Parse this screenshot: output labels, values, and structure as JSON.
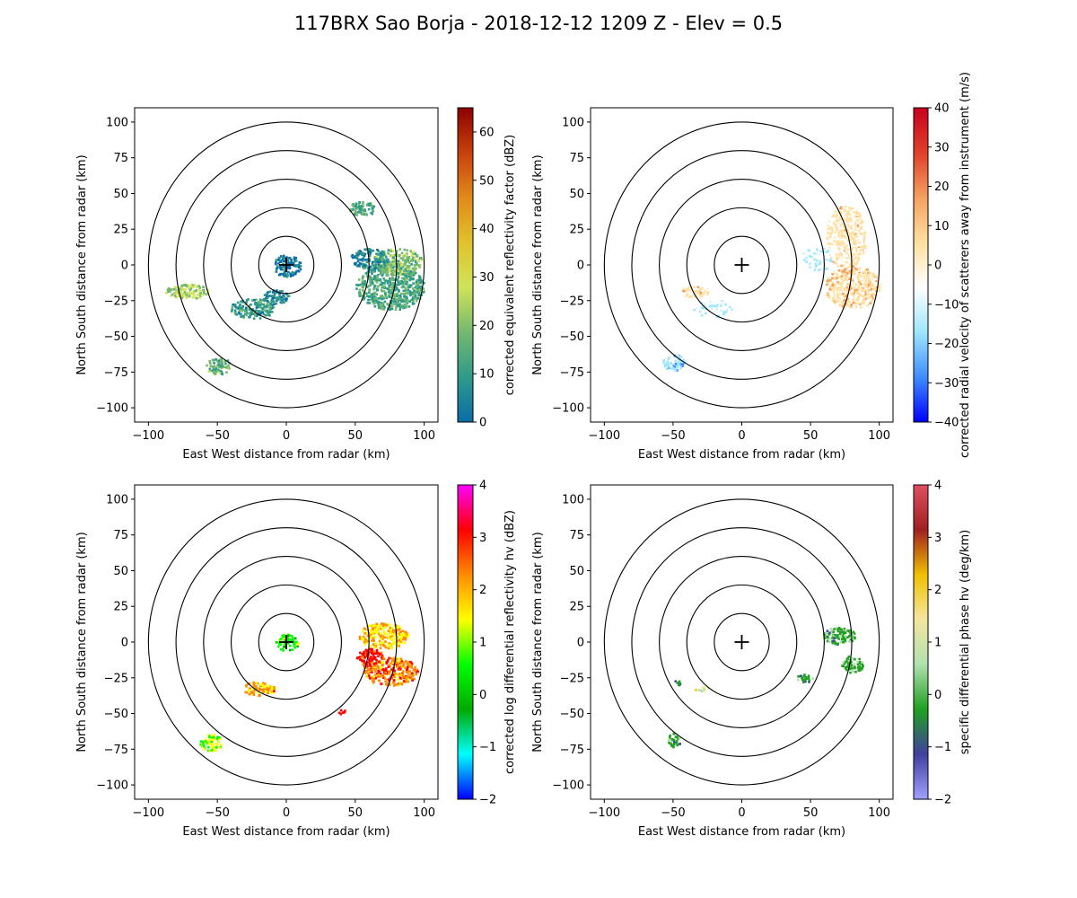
{
  "figure": {
    "title": "117BRX Sao Borja - 2018-12-12 1209 Z -  Elev = 0.5"
  },
  "chart_data": [
    {
      "type": "heatmap",
      "panel": "top-left",
      "field": "reflectivity",
      "xlabel": "East West distance from radar (km)",
      "ylabel": "North South distance from radar (km)",
      "xlim": [
        -110,
        110
      ],
      "ylim": [
        -110,
        110
      ],
      "xticks": [
        -100,
        -50,
        0,
        50,
        100
      ],
      "yticks": [
        -100,
        -75,
        -50,
        -25,
        0,
        25,
        50,
        75,
        100
      ],
      "range_rings_km": [
        20,
        40,
        60,
        80,
        100
      ],
      "colorbar": {
        "label": "corrected equivalent reflectivity factor (dBZ)",
        "min": 0,
        "max": 65,
        "ticks": [
          0,
          10,
          20,
          30,
          40,
          50,
          60
        ],
        "stops": [
          "#0c6ca8",
          "#2f9a8a",
          "#74b86f",
          "#d0e35a",
          "#e0c22c",
          "#e08a1a",
          "#c8400c",
          "#8c0000"
        ]
      },
      "echoes": [
        {
          "x": 75,
          "y": -15,
          "rx": 25,
          "ry": 16,
          "value": 18
        },
        {
          "x": 80,
          "y": 3,
          "rx": 18,
          "ry": 9,
          "value": 24
        },
        {
          "x": 60,
          "y": 5,
          "rx": 14,
          "ry": 7,
          "value": 12
        },
        {
          "x": 55,
          "y": 40,
          "rx": 10,
          "ry": 5,
          "value": 18
        },
        {
          "x": -25,
          "y": -30,
          "rx": 16,
          "ry": 7,
          "value": 14
        },
        {
          "x": -72,
          "y": -18,
          "rx": 16,
          "ry": 5,
          "value": 28
        },
        {
          "x": -50,
          "y": -70,
          "rx": 9,
          "ry": 6,
          "value": 22
        },
        {
          "x": 0,
          "y": 0,
          "rx": 10,
          "ry": 8,
          "value": 8
        },
        {
          "x": -8,
          "y": -22,
          "rx": 10,
          "ry": 5,
          "value": 10
        }
      ]
    },
    {
      "type": "heatmap",
      "panel": "top-right",
      "field": "velocity",
      "xlabel": "East West distance from radar (km)",
      "ylabel": "North South distance from radar (km)",
      "xlim": [
        -110,
        110
      ],
      "ylim": [
        -110,
        110
      ],
      "xticks": [
        -100,
        -50,
        0,
        50,
        100
      ],
      "yticks": [
        -100,
        -75,
        -50,
        -25,
        0,
        25,
        50,
        75,
        100
      ],
      "range_rings_km": [
        20,
        40,
        60,
        80,
        100
      ],
      "colorbar": {
        "label": "corrected radial velocity of scatterers away from instrument (m/s)",
        "min": -40,
        "max": 40,
        "ticks": [
          -40,
          -30,
          -20,
          -10,
          0,
          10,
          20,
          30,
          40
        ],
        "stops": [
          "#0000ff",
          "#3f8cff",
          "#9fe6ff",
          "#ffffff",
          "#ffe0a0",
          "#f5a060",
          "#e0402a",
          "#c8001e"
        ]
      },
      "echoes": [
        {
          "x": 80,
          "y": -15,
          "rx": 20,
          "ry": 15,
          "value": 12
        },
        {
          "x": 75,
          "y": 20,
          "rx": 15,
          "ry": 22,
          "value": 9
        },
        {
          "x": 55,
          "y": 5,
          "rx": 12,
          "ry": 8,
          "value": -5
        },
        {
          "x": -20,
          "y": -30,
          "rx": 16,
          "ry": 6,
          "value": -4
        },
        {
          "x": -50,
          "y": -68,
          "rx": 8,
          "ry": 6,
          "value": -12
        },
        {
          "x": -35,
          "y": -18,
          "rx": 10,
          "ry": 4,
          "value": 10
        }
      ]
    },
    {
      "type": "heatmap",
      "panel": "bottom-left",
      "field": "differential_reflectivity",
      "xlabel": "East West distance from radar (km)",
      "ylabel": "North South distance from radar (km)",
      "xlim": [
        -110,
        110
      ],
      "ylim": [
        -110,
        110
      ],
      "xticks": [
        -100,
        -50,
        0,
        50,
        100
      ],
      "yticks": [
        -100,
        -75,
        -50,
        -25,
        0,
        25,
        50,
        75,
        100
      ],
      "range_rings_km": [
        20,
        40,
        60,
        80,
        100
      ],
      "colorbar": {
        "label": "corrected log differential reflectivity hv (dBZ)",
        "min": -2,
        "max": 4,
        "ticks": [
          -2,
          -1,
          0,
          1,
          2,
          3,
          4
        ],
        "stops": [
          "#0000ff",
          "#00ffff",
          "#00aa00",
          "#00ff00",
          "#ffff00",
          "#ff8c00",
          "#ff0000",
          "#ff00ff"
        ]
      },
      "echoes": [
        {
          "x": 70,
          "y": 5,
          "rx": 18,
          "ry": 9,
          "value": 2.2
        },
        {
          "x": 75,
          "y": -20,
          "rx": 20,
          "ry": 10,
          "value": 2.8
        },
        {
          "x": 60,
          "y": -10,
          "rx": 10,
          "ry": 6,
          "value": 3.6
        },
        {
          "x": -20,
          "y": -32,
          "rx": 12,
          "ry": 5,
          "value": 2.5
        },
        {
          "x": -55,
          "y": -70,
          "rx": 8,
          "ry": 6,
          "value": 1.5
        },
        {
          "x": 0,
          "y": 0,
          "rx": 8,
          "ry": 6,
          "value": 1.0
        },
        {
          "x": 40,
          "y": -48,
          "rx": 3,
          "ry": 2,
          "value": 3.8
        }
      ]
    },
    {
      "type": "heatmap",
      "panel": "bottom-right",
      "field": "specific_differential_phase",
      "xlabel": "East West distance from radar (km)",
      "ylabel": "North South distance from radar (km)",
      "xlim": [
        -110,
        110
      ],
      "ylim": [
        -110,
        110
      ],
      "xticks": [
        -100,
        -50,
        0,
        50,
        100
      ],
      "yticks": [
        -100,
        -75,
        -50,
        -25,
        0,
        25,
        50,
        75,
        100
      ],
      "range_rings_km": [
        20,
        40,
        60,
        80,
        100
      ],
      "colorbar": {
        "label": "specific differential phase hv (deg/km)",
        "min": -2,
        "max": 4,
        "ticks": [
          -2,
          -1,
          0,
          1,
          2,
          3,
          4
        ],
        "stops": [
          "#a0a0ff",
          "#4040a0",
          "#20a020",
          "#b0e0b0",
          "#f5e6a0",
          "#f0c000",
          "#a02020",
          "#e05060"
        ]
      },
      "echoes": [
        {
          "x": 70,
          "y": 5,
          "rx": 12,
          "ry": 6,
          "value": 0.2
        },
        {
          "x": 80,
          "y": -15,
          "rx": 8,
          "ry": 6,
          "value": 0.4
        },
        {
          "x": 45,
          "y": -25,
          "rx": 6,
          "ry": 3,
          "value": 0.1
        },
        {
          "x": -50,
          "y": -68,
          "rx": 5,
          "ry": 5,
          "value": 0.3
        },
        {
          "x": -30,
          "y": -32,
          "rx": 5,
          "ry": 2,
          "value": 1.8
        },
        {
          "x": -48,
          "y": -28,
          "rx": 3,
          "ry": 2,
          "value": 0.0
        }
      ]
    }
  ]
}
